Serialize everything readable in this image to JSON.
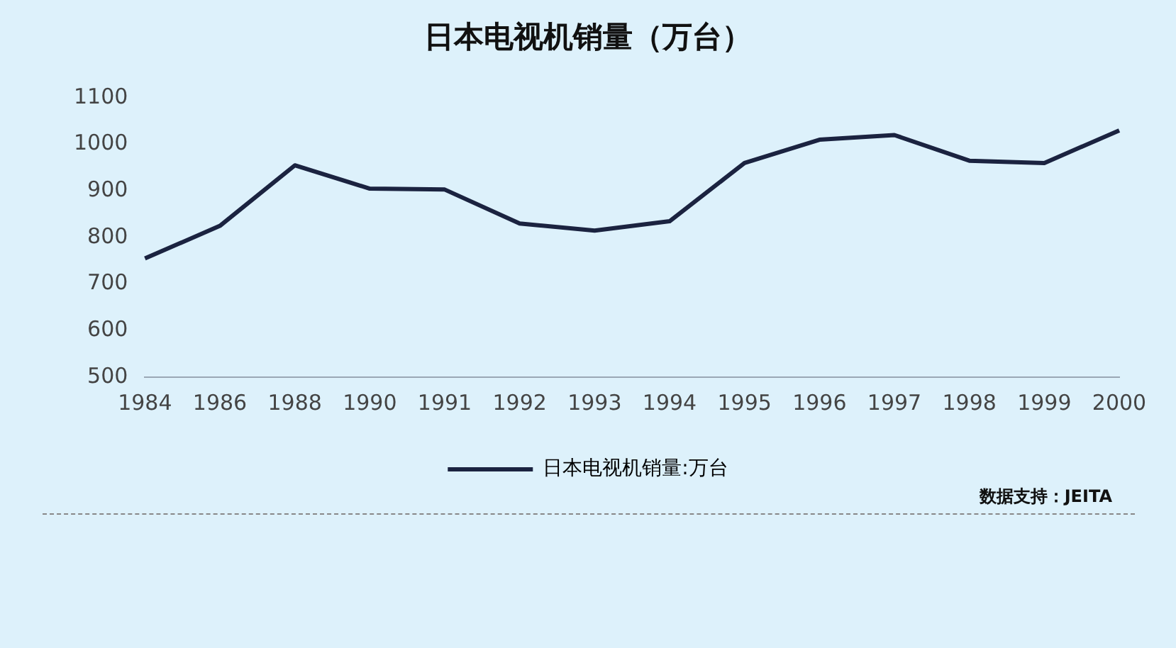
{
  "chart_data": {
    "type": "line",
    "title": "日本电视机销量（万台）",
    "categories": [
      "1984",
      "1986",
      "1988",
      "1990",
      "1991",
      "1992",
      "1993",
      "1994",
      "1995",
      "1996",
      "1997",
      "1998",
      "1999",
      "2000"
    ],
    "series": [
      {
        "name": "日本电视机销量:万台",
        "color": "#1b2340",
        "values": [
          755,
          825,
          955,
          905,
          903,
          830,
          815,
          835,
          960,
          1010,
          1020,
          965,
          960,
          1030
        ]
      }
    ],
    "ylim": [
      500,
      1100
    ],
    "yticks": [
      500,
      600,
      700,
      800,
      900,
      1000,
      1100
    ],
    "grid": false,
    "legend": "bottom",
    "marker": "none",
    "line_style": "solid",
    "annotations": [
      "数据支持：JEITA"
    ]
  }
}
